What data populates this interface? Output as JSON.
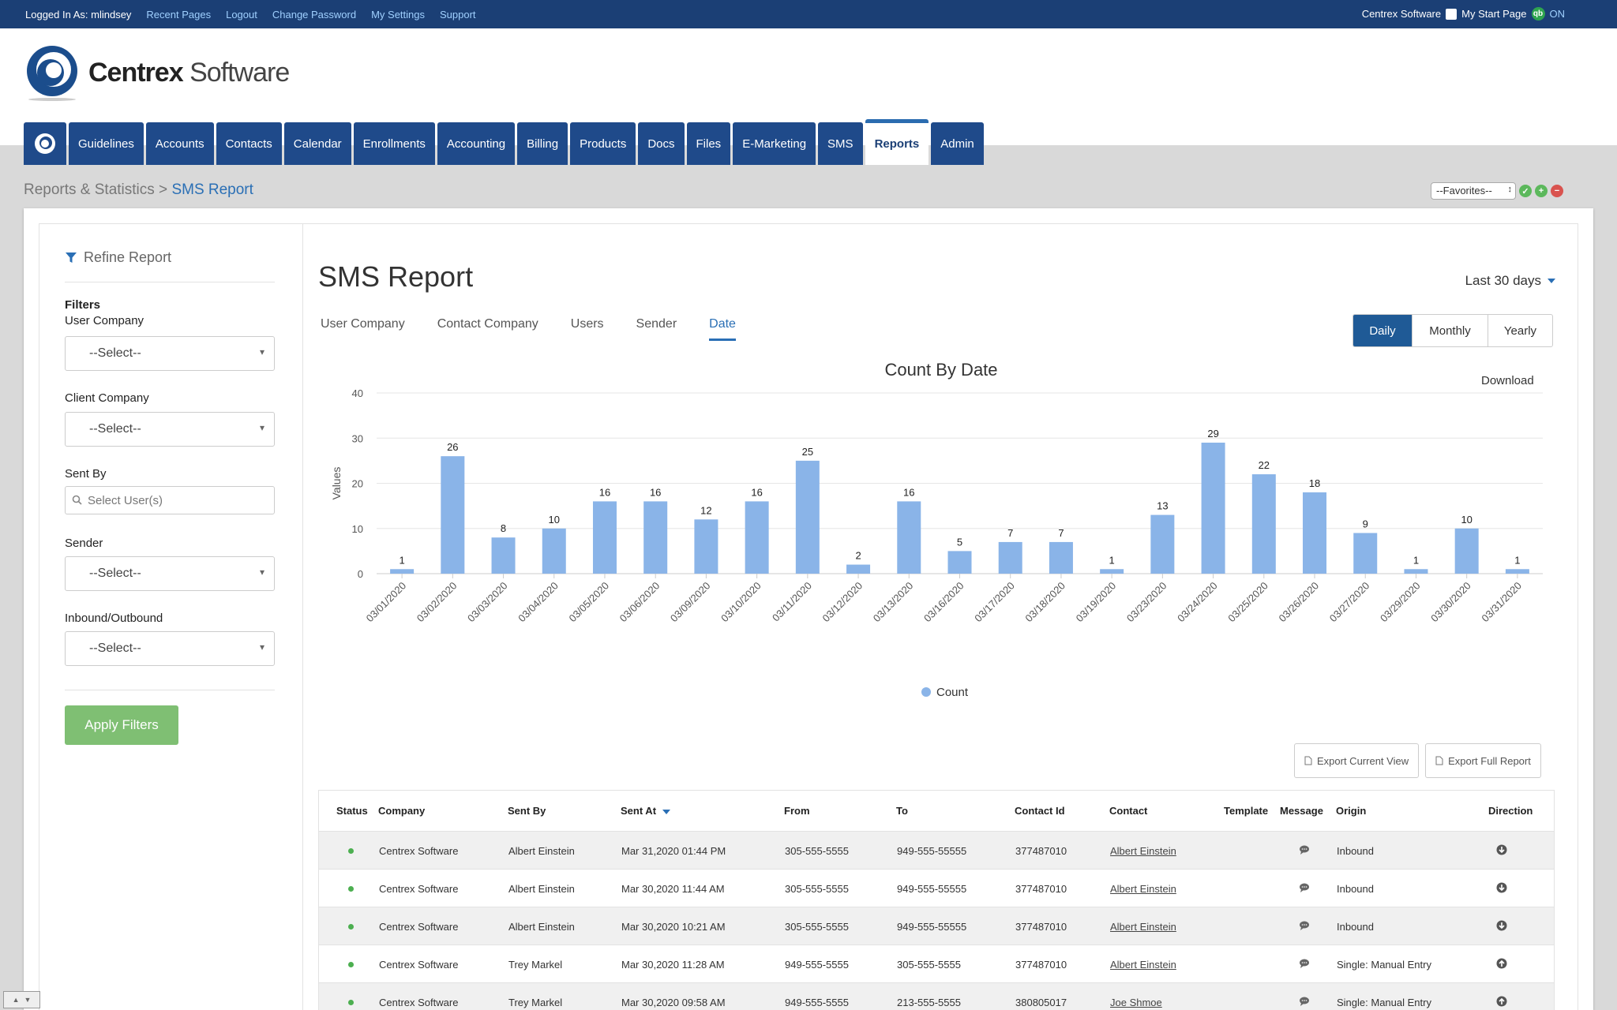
{
  "topbar": {
    "logged_in": "Logged In As: mlindsey",
    "links": [
      "Recent Pages",
      "Logout",
      "Change Password",
      "My Settings",
      "Support"
    ],
    "company": "Centrex Software",
    "start_page": "My Start Page",
    "qb_badge": "qb",
    "on_label": "ON"
  },
  "brand": {
    "name_bold": "Centrex",
    "name_light": "Software"
  },
  "nav": {
    "tabs": [
      "Guidelines",
      "Accounts",
      "Contacts",
      "Calendar",
      "Enrollments",
      "Accounting",
      "Billing",
      "Products",
      "Docs",
      "Files",
      "E-Marketing",
      "SMS",
      "Reports",
      "Admin"
    ],
    "active": "Reports"
  },
  "breadcrumb": {
    "parent": "Reports & Statistics",
    "sep": " > ",
    "current": "SMS Report"
  },
  "favorites": {
    "label": "--Favorites--"
  },
  "sidebar": {
    "title": "Refine Report",
    "filters_label": "Filters",
    "user_company": {
      "label": "User Company",
      "value": "--Select--"
    },
    "client_company": {
      "label": "Client Company",
      "value": "--Select--"
    },
    "sent_by": {
      "label": "Sent By",
      "placeholder": "Select User(s)"
    },
    "sender": {
      "label": "Sender",
      "value": "--Select--"
    },
    "direction": {
      "label": "Inbound/Outbound",
      "value": "--Select--"
    },
    "apply": "Apply Filters"
  },
  "report": {
    "title": "SMS Report",
    "range": "Last 30 days",
    "tabs": [
      "User Company",
      "Contact Company",
      "Users",
      "Sender",
      "Date"
    ],
    "active_tab": "Date",
    "periods": [
      "Daily",
      "Monthly",
      "Yearly"
    ],
    "active_period": "Daily",
    "download": "Download",
    "export_current": "Export Current View",
    "export_full": "Export Full Report"
  },
  "chart_data": {
    "type": "bar",
    "title": "Count By Date",
    "ylabel": "Values",
    "xlabel": "",
    "ylim": [
      0,
      40
    ],
    "yticks": [
      0,
      10,
      20,
      30,
      40
    ],
    "grid": true,
    "legend_position": "bottom",
    "color": "#8ab4e8",
    "categories": [
      "03/01/2020",
      "03/02/2020",
      "03/03/2020",
      "03/04/2020",
      "03/05/2020",
      "03/06/2020",
      "03/09/2020",
      "03/10/2020",
      "03/11/2020",
      "03/12/2020",
      "03/13/2020",
      "03/16/2020",
      "03/17/2020",
      "03/18/2020",
      "03/19/2020",
      "03/23/2020",
      "03/24/2020",
      "03/25/2020",
      "03/26/2020",
      "03/27/2020",
      "03/29/2020",
      "03/30/2020",
      "03/31/2020"
    ],
    "series": [
      {
        "name": "Count",
        "values": [
          1,
          26,
          8,
          10,
          16,
          16,
          12,
          16,
          25,
          2,
          16,
          5,
          7,
          7,
          1,
          13,
          29,
          22,
          18,
          9,
          1,
          10,
          1
        ]
      }
    ]
  },
  "table": {
    "headers": {
      "status": "Status",
      "company": "Company",
      "sent_by": "Sent By",
      "sent_at": "Sent At",
      "from": "From",
      "to": "To",
      "contact_id": "Contact Id",
      "contact": "Contact",
      "template": "Template",
      "message": "Message",
      "origin": "Origin",
      "direction": "Direction"
    },
    "rows": [
      {
        "company": "Centrex Software",
        "sent_by": "Albert Einstein",
        "sent_at": "Mar 31,2020 01:44 PM",
        "from": "305-555-5555",
        "to": "949-555-55555",
        "contact_id": "377487010",
        "contact": "Albert Einstein",
        "origin": "Inbound",
        "direction": "in"
      },
      {
        "company": "Centrex Software",
        "sent_by": "Albert Einstein",
        "sent_at": "Mar 30,2020 11:44 AM",
        "from": "305-555-5555",
        "to": "949-555-55555",
        "contact_id": "377487010",
        "contact": "Albert Einstein",
        "origin": "Inbound",
        "direction": "in"
      },
      {
        "company": "Centrex Software",
        "sent_by": "Albert Einstein",
        "sent_at": "Mar 30,2020 10:21 AM",
        "from": "305-555-5555",
        "to": "949-555-55555",
        "contact_id": "377487010",
        "contact": "Albert Einstein",
        "origin": "Inbound",
        "direction": "in"
      },
      {
        "company": "Centrex Software",
        "sent_by": "Trey Markel",
        "sent_at": "Mar 30,2020 11:28 AM",
        "from": "949-555-5555",
        "to": "305-555-5555",
        "contact_id": "377487010",
        "contact": "Albert Einstein",
        "origin": "Single: Manual Entry",
        "direction": "out"
      },
      {
        "company": "Centrex Software",
        "sent_by": "Trey Markel",
        "sent_at": "Mar 30,2020 09:58 AM",
        "from": "949-555-5555",
        "to": "213-555-5555",
        "contact_id": "380805017",
        "contact": "Joe Shmoe",
        "origin": "Single: Manual Entry",
        "direction": "out"
      }
    ]
  },
  "colors": {
    "topbar": "#1b3f75",
    "nav": "#1f4a8a",
    "accent": "#2a6fb5",
    "apply": "#7fbf73",
    "bar": "#8ab4e8",
    "status_ok": "#4caf50"
  }
}
